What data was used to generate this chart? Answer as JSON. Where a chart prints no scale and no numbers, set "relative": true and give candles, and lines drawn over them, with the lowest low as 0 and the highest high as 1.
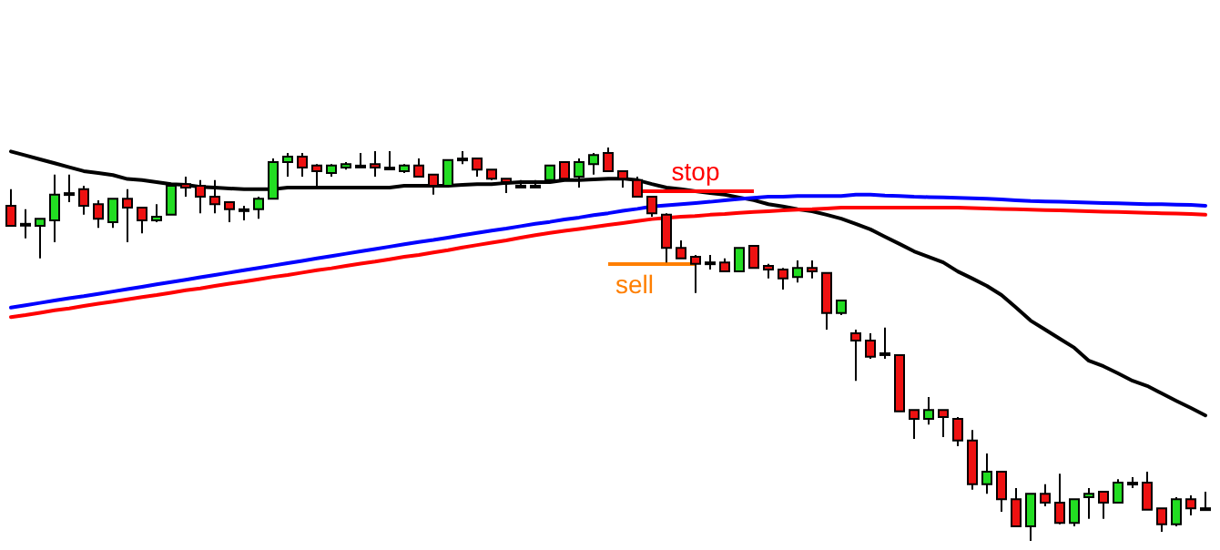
{
  "chart_data": {
    "type": "candlestick",
    "relative": true,
    "grid": false,
    "categories": [
      null,
      null,
      null,
      null,
      null,
      null,
      null,
      null,
      null,
      null,
      null,
      null,
      null,
      null,
      null,
      null,
      null,
      null,
      null,
      null,
      null,
      null,
      null,
      null,
      null,
      null,
      null,
      null,
      null,
      null,
      null,
      null,
      null,
      null,
      null,
      null,
      null,
      null,
      null,
      null,
      null,
      null,
      null,
      null,
      null,
      null,
      null,
      null,
      null,
      null,
      null,
      null,
      null,
      null,
      null,
      null,
      null,
      null,
      null,
      null,
      null,
      null,
      null,
      null,
      null,
      null,
      null,
      null,
      null,
      null,
      null,
      null,
      null,
      null,
      null,
      null,
      null,
      null,
      null,
      null,
      null,
      null,
      null
    ],
    "ohlc": [
      [
        0.852,
        0.894,
        0.801,
        0.801
      ],
      [
        0.806,
        0.843,
        0.769,
        0.806
      ],
      [
        0.801,
        0.819,
        0.718,
        0.819
      ],
      [
        0.815,
        0.931,
        0.759,
        0.88
      ],
      [
        0.884,
        0.931,
        0.861,
        0.884
      ],
      [
        0.894,
        0.903,
        0.829,
        0.852
      ],
      [
        0.856,
        0.866,
        0.796,
        0.819
      ],
      [
        0.81,
        0.87,
        0.796,
        0.87
      ],
      [
        0.87,
        0.894,
        0.759,
        0.847
      ],
      [
        0.847,
        0.847,
        0.782,
        0.815
      ],
      [
        0.815,
        0.856,
        0.81,
        0.824
      ],
      [
        0.829,
        0.903,
        0.829,
        0.903
      ],
      [
        0.907,
        0.926,
        0.875,
        0.898
      ],
      [
        0.903,
        0.917,
        0.833,
        0.875
      ],
      [
        0.875,
        0.917,
        0.833,
        0.856
      ],
      [
        0.861,
        0.861,
        0.81,
        0.843
      ],
      [
        0.843,
        0.852,
        0.815,
        0.843
      ],
      [
        0.843,
        0.875,
        0.819,
        0.87
      ],
      [
        0.87,
        0.972,
        0.87,
        0.963
      ],
      [
        0.963,
        0.986,
        0.926,
        0.977
      ],
      [
        0.977,
        0.986,
        0.926,
        0.949
      ],
      [
        0.954,
        0.958,
        0.903,
        0.94
      ],
      [
        0.935,
        0.958,
        0.926,
        0.954
      ],
      [
        0.949,
        0.963,
        0.944,
        0.958
      ],
      [
        0.954,
        0.986,
        0.949,
        0.954
      ],
      [
        0.958,
        0.991,
        0.926,
        0.949
      ],
      [
        0.949,
        0.991,
        0.944,
        0.949
      ],
      [
        0.94,
        0.958,
        0.935,
        0.954
      ],
      [
        0.954,
        0.972,
        0.926,
        0.926
      ],
      [
        0.931,
        0.931,
        0.88,
        0.903
      ],
      [
        0.903,
        0.968,
        0.903,
        0.968
      ],
      [
        0.972,
        0.991,
        0.958,
        0.972
      ],
      [
        0.972,
        0.972,
        0.926,
        0.944
      ],
      [
        0.944,
        0.944,
        0.917,
        0.921
      ],
      [
        0.921,
        0.921,
        0.884,
        0.912
      ],
      [
        0.903,
        0.917,
        0.898,
        0.903
      ],
      [
        0.903,
        0.917,
        0.898,
        0.903
      ],
      [
        0.917,
        0.954,
        0.917,
        0.954
      ],
      [
        0.963,
        0.963,
        0.921,
        0.921
      ],
      [
        0.926,
        0.972,
        0.898,
        0.963
      ],
      [
        0.958,
        0.986,
        0.931,
        0.981
      ],
      [
        0.986,
        1.0,
        0.94,
        0.94
      ],
      [
        0.94,
        0.94,
        0.898,
        0.921
      ],
      [
        0.917,
        0.926,
        0.875,
        0.875
      ],
      [
        0.875,
        0.875,
        0.824,
        0.833
      ],
      [
        0.829,
        0.833,
        0.708,
        0.745
      ],
      [
        0.745,
        0.764,
        0.718,
        0.718
      ],
      [
        0.722,
        0.727,
        0.63,
        0.704
      ],
      [
        0.708,
        0.727,
        0.69,
        0.708
      ],
      [
        0.708,
        0.718,
        0.685,
        0.685
      ],
      [
        0.685,
        0.745,
        0.685,
        0.745
      ],
      [
        0.75,
        0.75,
        0.694,
        0.694
      ],
      [
        0.699,
        0.704,
        0.667,
        0.69
      ],
      [
        0.69,
        0.694,
        0.639,
        0.667
      ],
      [
        0.671,
        0.713,
        0.657,
        0.694
      ],
      [
        0.694,
        0.713,
        0.667,
        0.685
      ],
      [
        0.681,
        0.681,
        0.537,
        0.579
      ],
      [
        0.579,
        0.611,
        0.574,
        0.611
      ],
      [
        0.528,
        0.537,
        0.407,
        0.509
      ],
      [
        0.509,
        0.528,
        0.463,
        0.468
      ],
      [
        0.477,
        0.542,
        0.463,
        0.477
      ],
      [
        0.472,
        0.472,
        0.329,
        0.329
      ],
      [
        0.333,
        0.333,
        0.259,
        0.31
      ],
      [
        0.31,
        0.366,
        0.296,
        0.333
      ],
      [
        0.333,
        0.333,
        0.264,
        0.315
      ],
      [
        0.31,
        0.315,
        0.241,
        0.255
      ],
      [
        0.255,
        0.282,
        0.13,
        0.144
      ],
      [
        0.144,
        0.222,
        0.12,
        0.176
      ],
      [
        0.176,
        0.176,
        0.074,
        0.106
      ],
      [
        0.106,
        0.134,
        0.037,
        0.037
      ],
      [
        0.037,
        0.12,
        0.0,
        0.12
      ],
      [
        0.12,
        0.144,
        0.088,
        0.097
      ],
      [
        0.097,
        0.171,
        0.042,
        0.046
      ],
      [
        0.046,
        0.106,
        0.037,
        0.106
      ],
      [
        0.111,
        0.134,
        0.056,
        0.12
      ],
      [
        0.125,
        0.125,
        0.056,
        0.097
      ],
      [
        0.097,
        0.157,
        0.097,
        0.148
      ],
      [
        0.148,
        0.162,
        0.134,
        0.148
      ],
      [
        0.148,
        0.176,
        0.079,
        0.079
      ],
      [
        0.083,
        0.083,
        0.023,
        0.042
      ],
      [
        0.042,
        0.111,
        0.037,
        0.106
      ],
      [
        0.106,
        0.116,
        0.065,
        0.083
      ],
      [
        0.083,
        0.125,
        0.083,
        0.083
      ]
    ],
    "series": [
      {
        "type": "line",
        "color": "#000000",
        "values": [
          0.99,
          0.98,
          0.97,
          0.96,
          0.95,
          0.94,
          0.935,
          0.93,
          0.92,
          0.917,
          0.912,
          0.907,
          0.905,
          0.9,
          0.898,
          0.896,
          0.894,
          0.894,
          0.894,
          0.898,
          0.898,
          0.898,
          0.898,
          0.898,
          0.898,
          0.898,
          0.898,
          0.903,
          0.903,
          0.903,
          0.903,
          0.905,
          0.907,
          0.907,
          0.91,
          0.912,
          0.912,
          0.912,
          0.917,
          0.917,
          0.919,
          0.921,
          0.921,
          0.917,
          0.907,
          0.898,
          0.894,
          0.889,
          0.884,
          0.88,
          0.873,
          0.866,
          0.856,
          0.85,
          0.843,
          0.838,
          0.829,
          0.819,
          0.806,
          0.792,
          0.773,
          0.755,
          0.736,
          0.722,
          0.708,
          0.685,
          0.667,
          0.648,
          0.625,
          0.593,
          0.56,
          0.537,
          0.514,
          0.491,
          0.458,
          0.444,
          0.426,
          0.407,
          0.394,
          0.375,
          0.356,
          0.338,
          0.319
        ]
      },
      {
        "type": "line",
        "color": "#0000ff",
        "values": [
          0.593,
          0.599,
          0.605,
          0.611,
          0.617,
          0.622,
          0.628,
          0.634,
          0.64,
          0.646,
          0.652,
          0.658,
          0.664,
          0.67,
          0.676,
          0.682,
          0.688,
          0.694,
          0.7,
          0.706,
          0.712,
          0.718,
          0.724,
          0.73,
          0.736,
          0.742,
          0.748,
          0.754,
          0.76,
          0.765,
          0.771,
          0.777,
          0.783,
          0.789,
          0.794,
          0.8,
          0.806,
          0.811,
          0.817,
          0.822,
          0.828,
          0.833,
          0.839,
          0.844,
          0.85,
          0.853,
          0.856,
          0.859,
          0.862,
          0.866,
          0.869,
          0.872,
          0.875,
          0.875,
          0.877,
          0.877,
          0.877,
          0.877,
          0.88,
          0.88,
          0.878,
          0.877,
          0.875,
          0.874,
          0.873,
          0.872,
          0.871,
          0.87,
          0.868,
          0.866,
          0.864,
          0.863,
          0.862,
          0.861,
          0.86,
          0.859,
          0.858,
          0.857,
          0.856,
          0.856,
          0.855,
          0.854,
          0.852
        ]
      },
      {
        "type": "line",
        "color": "#ff0000",
        "values": [
          0.569,
          0.574,
          0.58,
          0.586,
          0.591,
          0.597,
          0.603,
          0.608,
          0.614,
          0.62,
          0.625,
          0.631,
          0.637,
          0.642,
          0.648,
          0.654,
          0.659,
          0.665,
          0.671,
          0.676,
          0.682,
          0.688,
          0.693,
          0.699,
          0.705,
          0.71,
          0.716,
          0.722,
          0.727,
          0.733,
          0.739,
          0.746,
          0.752,
          0.758,
          0.764,
          0.771,
          0.777,
          0.783,
          0.788,
          0.793,
          0.798,
          0.803,
          0.808,
          0.813,
          0.818,
          0.821,
          0.824,
          0.826,
          0.829,
          0.831,
          0.834,
          0.836,
          0.838,
          0.84,
          0.842,
          0.843,
          0.845,
          0.847,
          0.847,
          0.847,
          0.847,
          0.847,
          0.847,
          0.847,
          0.847,
          0.847,
          0.846,
          0.845,
          0.844,
          0.843,
          0.842,
          0.841,
          0.84,
          0.839,
          0.838,
          0.837,
          0.836,
          0.835,
          0.834,
          0.833,
          0.832,
          0.831,
          0.829
        ]
      }
    ],
    "ref_lines": [
      {
        "axis": "y",
        "value": 0.889,
        "label": "stop",
        "color": "#ff0000"
      },
      {
        "axis": "y",
        "value": 0.704,
        "label": "sell",
        "color": "#ff7f00"
      }
    ]
  }
}
